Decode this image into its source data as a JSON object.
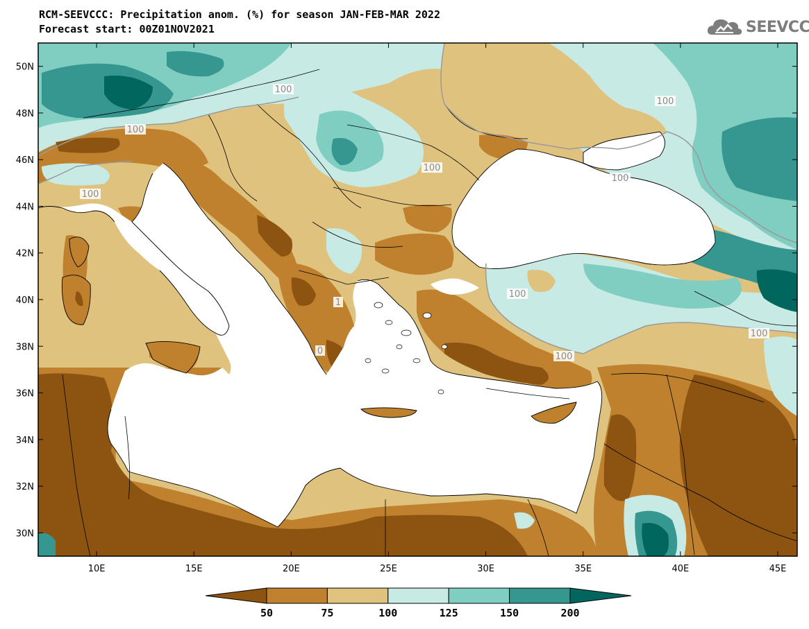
{
  "title_line1": "RCM-SEEVCCC: Precipitation anom. (%) for season JAN-FEB-MAR 2022",
  "title_line2": "Forecast start: 00Z01NOV2021",
  "logo_text": "SEEVCCC",
  "logo_icon": "cloud-logo-icon",
  "map": {
    "lon_range": [
      7,
      46
    ],
    "lat_range": [
      29,
      51
    ],
    "lon_ticks": [
      "10E",
      "15E",
      "20E",
      "25E",
      "30E",
      "35E",
      "40E",
      "45E"
    ],
    "lat_ticks": [
      "30N",
      "32N",
      "34N",
      "36N",
      "38N",
      "40N",
      "42N",
      "44N",
      "46N",
      "48N",
      "50N"
    ],
    "contour_labels": [
      "100",
      "100",
      "100",
      "100",
      "100",
      "100",
      "100",
      "100",
      "100",
      "1",
      "0"
    ],
    "land_colors": {
      "lt50": "#8c5311",
      "50_75": "#bf812d",
      "75_100": "#dfc27d",
      "100_125": "#c7eae5",
      "125_150": "#80cdc1",
      "150_200": "#35978f",
      "gt200": "#01665e",
      "sea": "#ffffff"
    }
  },
  "colorbar": {
    "labels": [
      "50",
      "75",
      "100",
      "125",
      "150",
      "200"
    ],
    "colors": [
      "#8c5311",
      "#bf812d",
      "#dfc27d",
      "#c7eae5",
      "#80cdc1",
      "#35978f",
      "#01665e"
    ]
  }
}
